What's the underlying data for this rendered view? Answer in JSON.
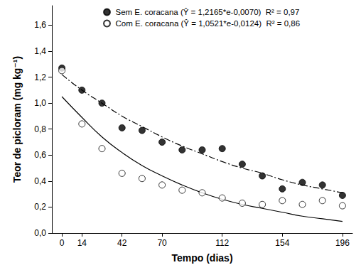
{
  "chart_data": {
    "type": "scatter",
    "x_label": "Tempo (dias)",
    "y_label": "Teor de picloram (mg kg⁻¹)",
    "x": [
      0,
      14,
      28,
      42,
      56,
      70,
      84,
      98,
      112,
      126,
      140,
      154,
      168,
      182,
      196
    ],
    "series": [
      {
        "name": "Sem E. coracana (Ŷ = 1,2165*e-0,0070)  R² = 0,97",
        "type": "scatter",
        "marker": "circle",
        "color": "#000000",
        "values": [
          1.27,
          1.1,
          1.0,
          0.81,
          0.79,
          0.7,
          0.64,
          0.64,
          0.65,
          0.53,
          0.44,
          0.34,
          0.39,
          0.37,
          0.29
        ]
      },
      {
        "name": "Sem E. coracana (Ŷ = 1,2165*e-0,0070)  R² = 0,97",
        "type": "line",
        "line_style": "dashdot",
        "color": "#000000",
        "values": [
          1.22,
          1.1,
          1.0,
          0.9,
          0.82,
          0.74,
          0.67,
          0.61,
          0.55,
          0.5,
          0.46,
          0.41,
          0.37,
          0.34,
          0.31
        ]
      },
      {
        "name": "Com E. coracana (Ŷ = 1,0521*e-0,0124)  R² = 0,86",
        "type": "scatter",
        "marker": "open_circle",
        "color": "#000000",
        "values": [
          1.25,
          0.84,
          0.65,
          0.46,
          0.42,
          0.37,
          0.33,
          0.31,
          0.27,
          0.23,
          0.22,
          0.25,
          0.22,
          0.25,
          0.21
        ]
      },
      {
        "name": "Com E. coracana (Ŷ = 1,0521*e-0,0124)  R² = 0,86",
        "type": "line",
        "line_style": "solid",
        "color": "#000000",
        "values": [
          1.05,
          0.89,
          0.74,
          0.62,
          0.52,
          0.44,
          0.37,
          0.31,
          0.26,
          0.22,
          0.19,
          0.16,
          0.13,
          0.11,
          0.09
        ]
      }
    ],
    "xlim": [
      -7,
      203
    ],
    "xticks": [
      0,
      14,
      42,
      70,
      112,
      154,
      196
    ],
    "ylim": [
      0,
      1.75
    ],
    "yticks": [
      {
        "value": 0,
        "label": "0,0"
      },
      {
        "value": 0.2,
        "label": "0,2"
      },
      {
        "value": 0.4,
        "label": "0,4"
      },
      {
        "value": 0.6,
        "label": "0,6"
      },
      {
        "value": 0.8,
        "label": "0,8"
      },
      {
        "value": 1.0,
        "label": "1,0"
      },
      {
        "value": 1.2,
        "label": "1,2"
      },
      {
        "value": 1.4,
        "label": "1,4"
      },
      {
        "value": 1.6,
        "label": "1,6"
      }
    ],
    "grid": false,
    "legend": "top-left"
  }
}
